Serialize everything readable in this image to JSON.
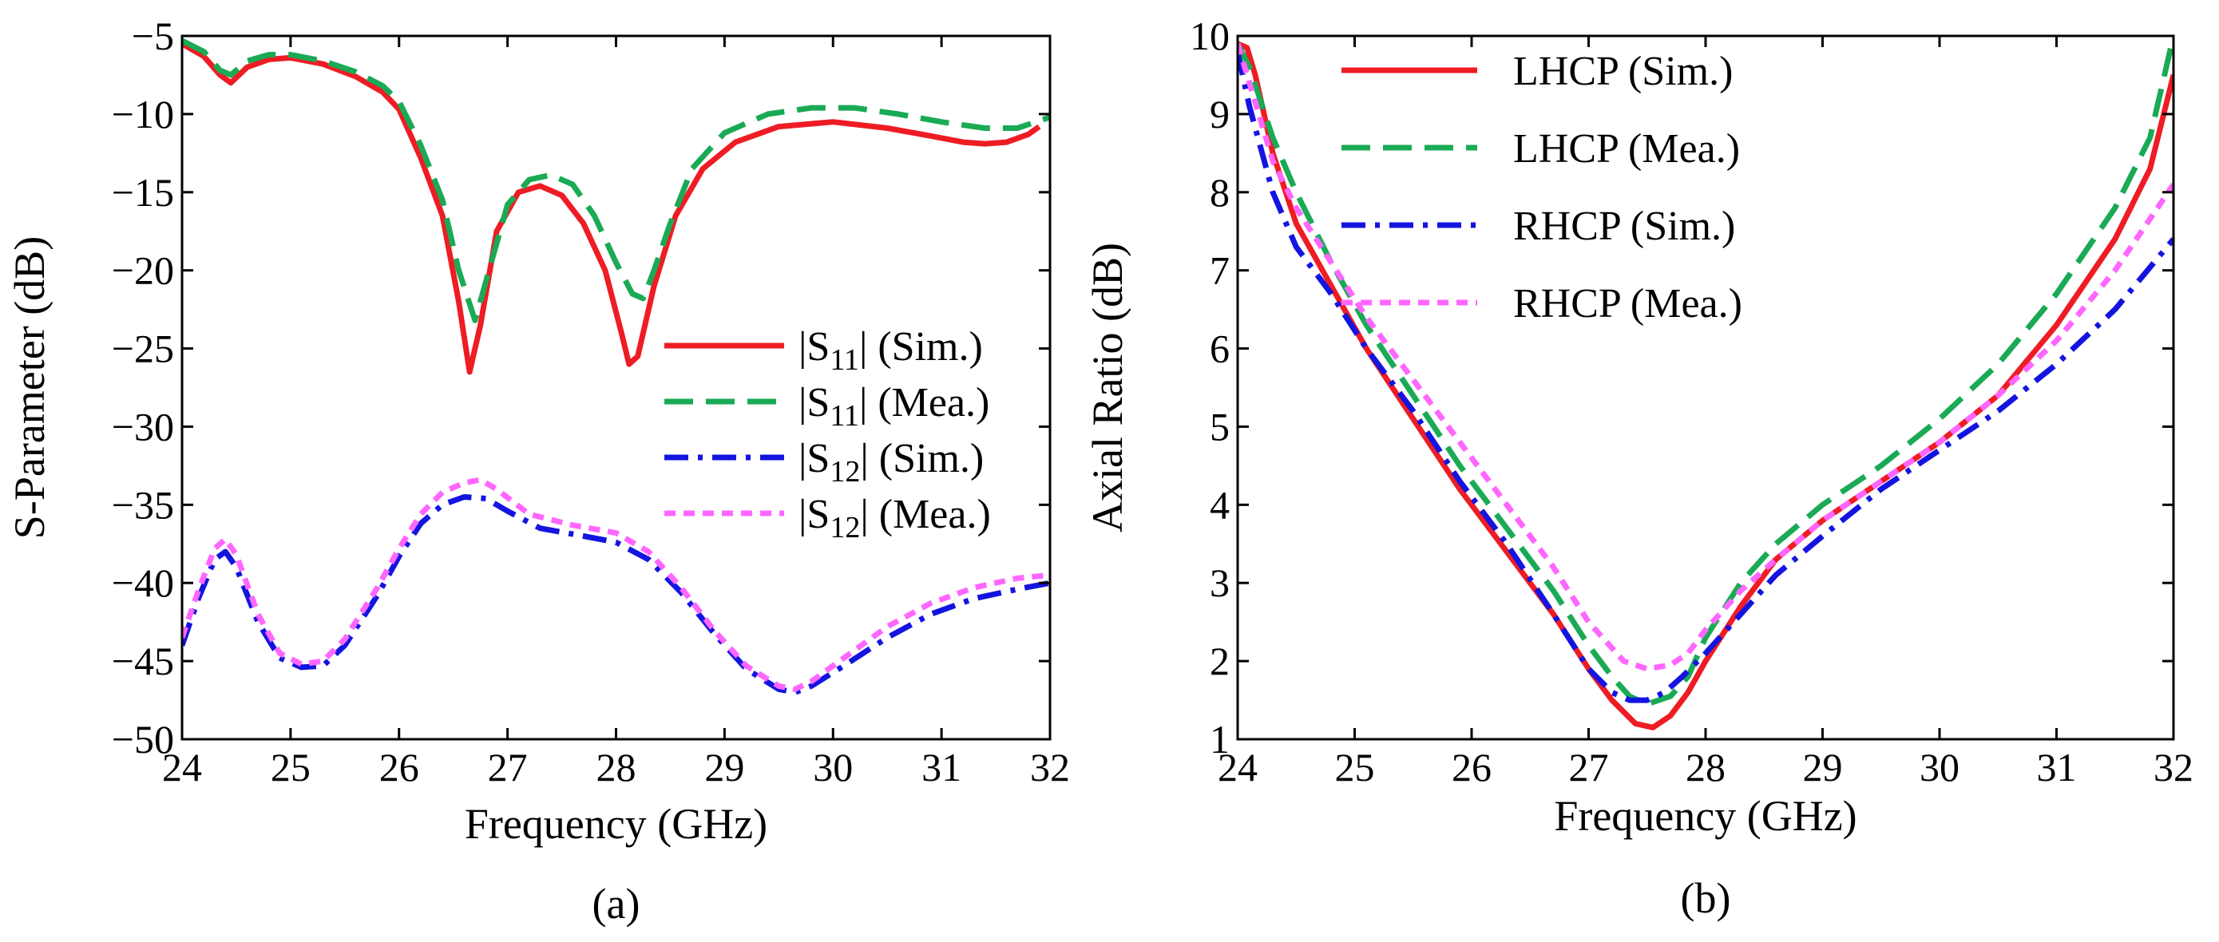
{
  "chart_data": [
    {
      "id": "a",
      "type": "line",
      "caption": "(a)",
      "xlabel": "Frequency (GHz)",
      "ylabel": "S-Parameter (dB)",
      "xlim": [
        24,
        32
      ],
      "ylim": [
        -50,
        -5
      ],
      "xticks": [
        24,
        25,
        26,
        27,
        28,
        29,
        30,
        31,
        32
      ],
      "yticks": [
        -5,
        -10,
        -15,
        -20,
        -25,
        -30,
        -35,
        -40,
        -45,
        -50
      ],
      "grid": false,
      "legend_position": "center-right",
      "series": [
        {
          "key": "s11-sim",
          "label_base": "|S",
          "label_sub": "11",
          "label_tail": "| (Sim.)",
          "color": "#ee1c24",
          "dash": "solid",
          "x": [
            24.0,
            24.2,
            24.35,
            24.45,
            24.6,
            24.8,
            25.0,
            25.3,
            25.6,
            25.85,
            26.0,
            26.2,
            26.4,
            26.55,
            26.65,
            26.75,
            26.9,
            27.1,
            27.3,
            27.5,
            27.7,
            27.9,
            28.05,
            28.12,
            28.2,
            28.35,
            28.55,
            28.8,
            29.1,
            29.5,
            30.0,
            30.5,
            30.9,
            31.2,
            31.4,
            31.6,
            31.8,
            31.9
          ],
          "y": [
            -5.5,
            -6.3,
            -7.5,
            -8.0,
            -7.0,
            -6.5,
            -6.4,
            -6.8,
            -7.6,
            -8.6,
            -9.7,
            -12.8,
            -16.5,
            -22.0,
            -26.5,
            -23.5,
            -17.5,
            -15.0,
            -14.6,
            -15.2,
            -17.0,
            -20.0,
            -24.0,
            -26.0,
            -25.5,
            -21.0,
            -16.5,
            -13.5,
            -11.8,
            -10.8,
            -10.5,
            -10.9,
            -11.4,
            -11.8,
            -11.9,
            -11.8,
            -11.3,
            -10.8
          ]
        },
        {
          "key": "s11-mea",
          "label_base": "|S",
          "label_sub": "11",
          "label_tail": "| (Mea.)",
          "color": "#1aaa55",
          "dash": "long",
          "x": [
            24.0,
            24.2,
            24.35,
            24.45,
            24.6,
            24.8,
            25.0,
            25.3,
            25.6,
            25.85,
            26.0,
            26.2,
            26.4,
            26.55,
            26.7,
            26.85,
            27.0,
            27.2,
            27.4,
            27.6,
            27.8,
            28.0,
            28.15,
            28.25,
            28.35,
            28.5,
            28.7,
            29.0,
            29.4,
            29.8,
            30.2,
            30.6,
            31.0,
            31.4,
            31.7,
            32.0
          ],
          "y": [
            -5.3,
            -6.0,
            -7.2,
            -7.5,
            -6.6,
            -6.2,
            -6.2,
            -6.6,
            -7.3,
            -8.2,
            -9.2,
            -12.0,
            -15.5,
            -20.0,
            -23.2,
            -19.5,
            -15.8,
            -14.2,
            -13.9,
            -14.5,
            -16.5,
            -19.5,
            -21.5,
            -21.8,
            -20.0,
            -17.0,
            -13.5,
            -11.2,
            -10.0,
            -9.6,
            -9.6,
            -10.0,
            -10.5,
            -10.9,
            -10.9,
            -10.2
          ]
        },
        {
          "key": "s12-sim",
          "label_base": "|S",
          "label_sub": "12",
          "label_tail": "| (Sim.)",
          "color": "#1414e0",
          "dash": "dashdot",
          "x": [
            24.0,
            24.15,
            24.3,
            24.4,
            24.5,
            24.7,
            24.9,
            25.1,
            25.3,
            25.5,
            25.8,
            26.0,
            26.2,
            26.4,
            26.6,
            26.8,
            27.0,
            27.3,
            27.7,
            28.0,
            28.3,
            28.6,
            28.9,
            29.2,
            29.5,
            29.65,
            29.8,
            30.1,
            30.5,
            30.9,
            31.3,
            31.7,
            32.0
          ],
          "y": [
            -44.0,
            -41.0,
            -38.5,
            -38.0,
            -39.0,
            -42.5,
            -44.8,
            -45.4,
            -45.3,
            -44.0,
            -40.8,
            -38.3,
            -36.2,
            -35.0,
            -34.5,
            -34.6,
            -35.4,
            -36.5,
            -37.0,
            -37.4,
            -38.5,
            -40.6,
            -43.2,
            -45.5,
            -46.8,
            -47.0,
            -46.6,
            -45.3,
            -43.5,
            -42.0,
            -41.0,
            -40.4,
            -40.0
          ]
        },
        {
          "key": "s12-mea",
          "label_base": "|S",
          "label_sub": "12",
          "label_tail": "| (Mea.)",
          "color": "#ff66ff",
          "dash": "short",
          "x": [
            24.0,
            24.15,
            24.3,
            24.4,
            24.5,
            24.7,
            24.9,
            25.1,
            25.3,
            25.5,
            25.8,
            26.0,
            26.2,
            26.4,
            26.6,
            26.75,
            26.9,
            27.2,
            27.6,
            28.0,
            28.3,
            28.6,
            28.9,
            29.2,
            29.5,
            29.65,
            29.8,
            30.1,
            30.5,
            30.9,
            31.3,
            31.7,
            32.0
          ],
          "y": [
            -43.5,
            -40.5,
            -37.8,
            -37.2,
            -38.2,
            -42.0,
            -44.5,
            -45.2,
            -45.0,
            -43.6,
            -40.3,
            -37.8,
            -35.6,
            -34.2,
            -33.6,
            -33.4,
            -34.0,
            -35.6,
            -36.3,
            -36.8,
            -38.0,
            -40.3,
            -43.0,
            -45.3,
            -46.6,
            -46.8,
            -46.3,
            -44.8,
            -42.8,
            -41.3,
            -40.3,
            -39.7,
            -39.5
          ]
        }
      ]
    },
    {
      "id": "b",
      "type": "line",
      "caption": "(b)",
      "xlabel": "Frequency (GHz)",
      "ylabel": "Axial Ratio (dB)",
      "xlim": [
        24,
        32
      ],
      "ylim": [
        1,
        10
      ],
      "xticks": [
        24,
        25,
        26,
        27,
        28,
        29,
        30,
        31,
        32
      ],
      "yticks": [
        1,
        2,
        3,
        4,
        5,
        6,
        7,
        8,
        9,
        10
      ],
      "grid": false,
      "legend_position": "top-left",
      "series": [
        {
          "key": "lhcp-sim",
          "label": "LHCP (Sim.)",
          "color": "#ee1c24",
          "dash": "solid",
          "x": [
            24.0,
            24.08,
            24.15,
            24.3,
            24.5,
            24.8,
            25.1,
            25.5,
            25.9,
            26.3,
            26.7,
            27.0,
            27.2,
            27.4,
            27.55,
            27.7,
            27.85,
            28.0,
            28.3,
            28.6,
            29.0,
            29.5,
            30.0,
            30.5,
            31.0,
            31.5,
            31.8,
            32.0
          ],
          "y": [
            9.9,
            9.85,
            9.5,
            8.5,
            7.6,
            6.8,
            6.0,
            5.1,
            4.2,
            3.4,
            2.6,
            1.9,
            1.5,
            1.2,
            1.15,
            1.3,
            1.6,
            2.0,
            2.7,
            3.3,
            3.8,
            4.3,
            4.8,
            5.4,
            6.3,
            7.4,
            8.3,
            9.5
          ]
        },
        {
          "key": "lhcp-mea",
          "label": "LHCP (Mea.)",
          "color": "#1aaa55",
          "dash": "long",
          "x": [
            24.0,
            24.1,
            24.3,
            24.5,
            24.8,
            25.1,
            25.5,
            25.9,
            26.3,
            26.7,
            27.0,
            27.2,
            27.35,
            27.5,
            27.7,
            27.85,
            28.0,
            28.3,
            28.6,
            29.0,
            29.5,
            30.0,
            30.5,
            31.0,
            31.5,
            31.8,
            32.0
          ],
          "y": [
            9.9,
            9.6,
            8.7,
            8.0,
            7.1,
            6.3,
            5.4,
            4.5,
            3.7,
            2.9,
            2.2,
            1.8,
            1.55,
            1.45,
            1.55,
            1.8,
            2.3,
            3.0,
            3.5,
            4.0,
            4.5,
            5.1,
            5.8,
            6.7,
            7.8,
            8.7,
            10.0
          ]
        },
        {
          "key": "rhcp-sim",
          "label": "RHCP (Sim.)",
          "color": "#1414e0",
          "dash": "dashdot",
          "x": [
            24.0,
            24.1,
            24.3,
            24.5,
            24.8,
            25.1,
            25.5,
            25.9,
            26.3,
            26.7,
            27.0,
            27.2,
            27.35,
            27.5,
            27.65,
            27.8,
            28.0,
            28.3,
            28.6,
            29.0,
            29.5,
            30.0,
            30.5,
            31.0,
            31.5,
            32.0
          ],
          "y": [
            9.8,
            9.1,
            8.0,
            7.3,
            6.7,
            6.0,
            5.2,
            4.3,
            3.5,
            2.6,
            1.9,
            1.6,
            1.5,
            1.5,
            1.6,
            1.8,
            2.1,
            2.6,
            3.1,
            3.6,
            4.2,
            4.7,
            5.2,
            5.8,
            6.5,
            7.4
          ]
        },
        {
          "key": "rhcp-mea",
          "label": "RHCP (Mea.)",
          "color": "#ff66ff",
          "dash": "short",
          "x": [
            24.0,
            24.1,
            24.3,
            24.5,
            24.8,
            25.1,
            25.5,
            25.9,
            26.3,
            26.7,
            27.0,
            27.3,
            27.5,
            27.7,
            27.85,
            28.0,
            28.3,
            28.6,
            29.0,
            29.5,
            30.0,
            30.5,
            31.0,
            31.5,
            32.0
          ],
          "y": [
            9.9,
            9.4,
            8.4,
            7.8,
            7.1,
            6.4,
            5.6,
            4.8,
            4.0,
            3.2,
            2.5,
            2.0,
            1.9,
            1.95,
            2.1,
            2.4,
            2.9,
            3.3,
            3.8,
            4.3,
            4.8,
            5.4,
            6.1,
            7.0,
            8.1
          ]
        }
      ]
    }
  ]
}
